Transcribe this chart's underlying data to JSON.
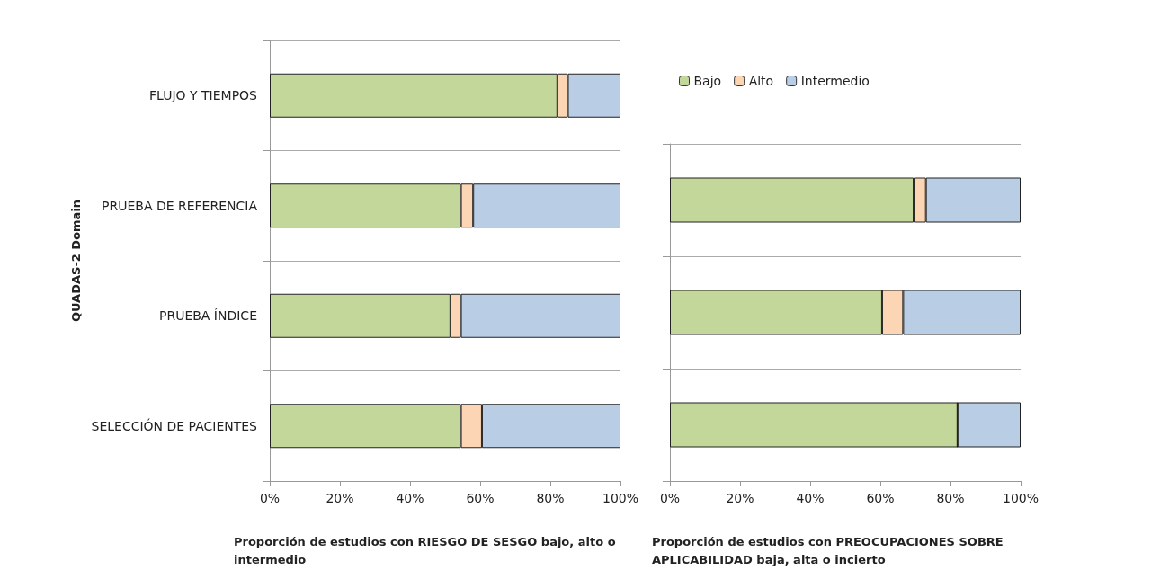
{
  "chart_data": [
    {
      "type": "bar",
      "orientation": "horizontal",
      "stacked": true,
      "ylabel": "QUADAS-2 Domain",
      "xlabel": "Proporción de estudios con RIESGO DE SESGO bajo, alto o intermedio",
      "categories": [
        "FLUJO Y TIEMPOS",
        "PRUEBA DE REFERENCIA",
        "PRUEBA ÍNDICE",
        "SELECCIÓN DE PACIENTES"
      ],
      "series": [
        {
          "color": "#c4d79b",
          "values": [
            82,
            54.5,
            51.5,
            54.5
          ]
        },
        {
          "color": "#fcd5b5",
          "values": [
            3,
            3.5,
            3,
            6
          ]
        },
        {
          "color": "#b9cde5",
          "values": [
            15,
            42,
            45.5,
            39.5
          ]
        }
      ],
      "xlim": [
        0,
        100
      ],
      "xticks": [
        {
          "value": 0,
          "label": "0%"
        },
        {
          "value": 20,
          "label": "20%"
        },
        {
          "value": 40,
          "label": "40%"
        },
        {
          "value": 60,
          "label": "60%"
        },
        {
          "value": 80,
          "label": "80%"
        },
        {
          "value": 100,
          "label": "100%"
        }
      ],
      "grid": "y",
      "legend": false
    },
    {
      "type": "bar",
      "orientation": "horizontal",
      "stacked": true,
      "xlabel": "Proporción de estudios con PREOCUPACIONES SOBRE APLICABILIDAD baja, alta o incierto",
      "categories": [
        null,
        null,
        null
      ],
      "series": [
        {
          "name": "Bajo",
          "color": "#c4d79b",
          "values": [
            69.5,
            60.5,
            82
          ]
        },
        {
          "name": "Alto",
          "color": "#fcd5b5",
          "values": [
            3.5,
            6,
            0
          ]
        },
        {
          "name": "Intermedio",
          "color": "#b9cde5",
          "values": [
            27,
            33.5,
            18
          ]
        }
      ],
      "xlim": [
        0,
        100
      ],
      "xticks": [
        {
          "value": 0,
          "label": "0%"
        },
        {
          "value": 20,
          "label": "20%"
        },
        {
          "value": 40,
          "label": "40%"
        },
        {
          "value": 60,
          "label": "60%"
        },
        {
          "value": 80,
          "label": "80%"
        },
        {
          "value": 100,
          "label": "100%"
        }
      ],
      "grid": "y",
      "legend": "top",
      "tick_labels": "x"
    }
  ]
}
